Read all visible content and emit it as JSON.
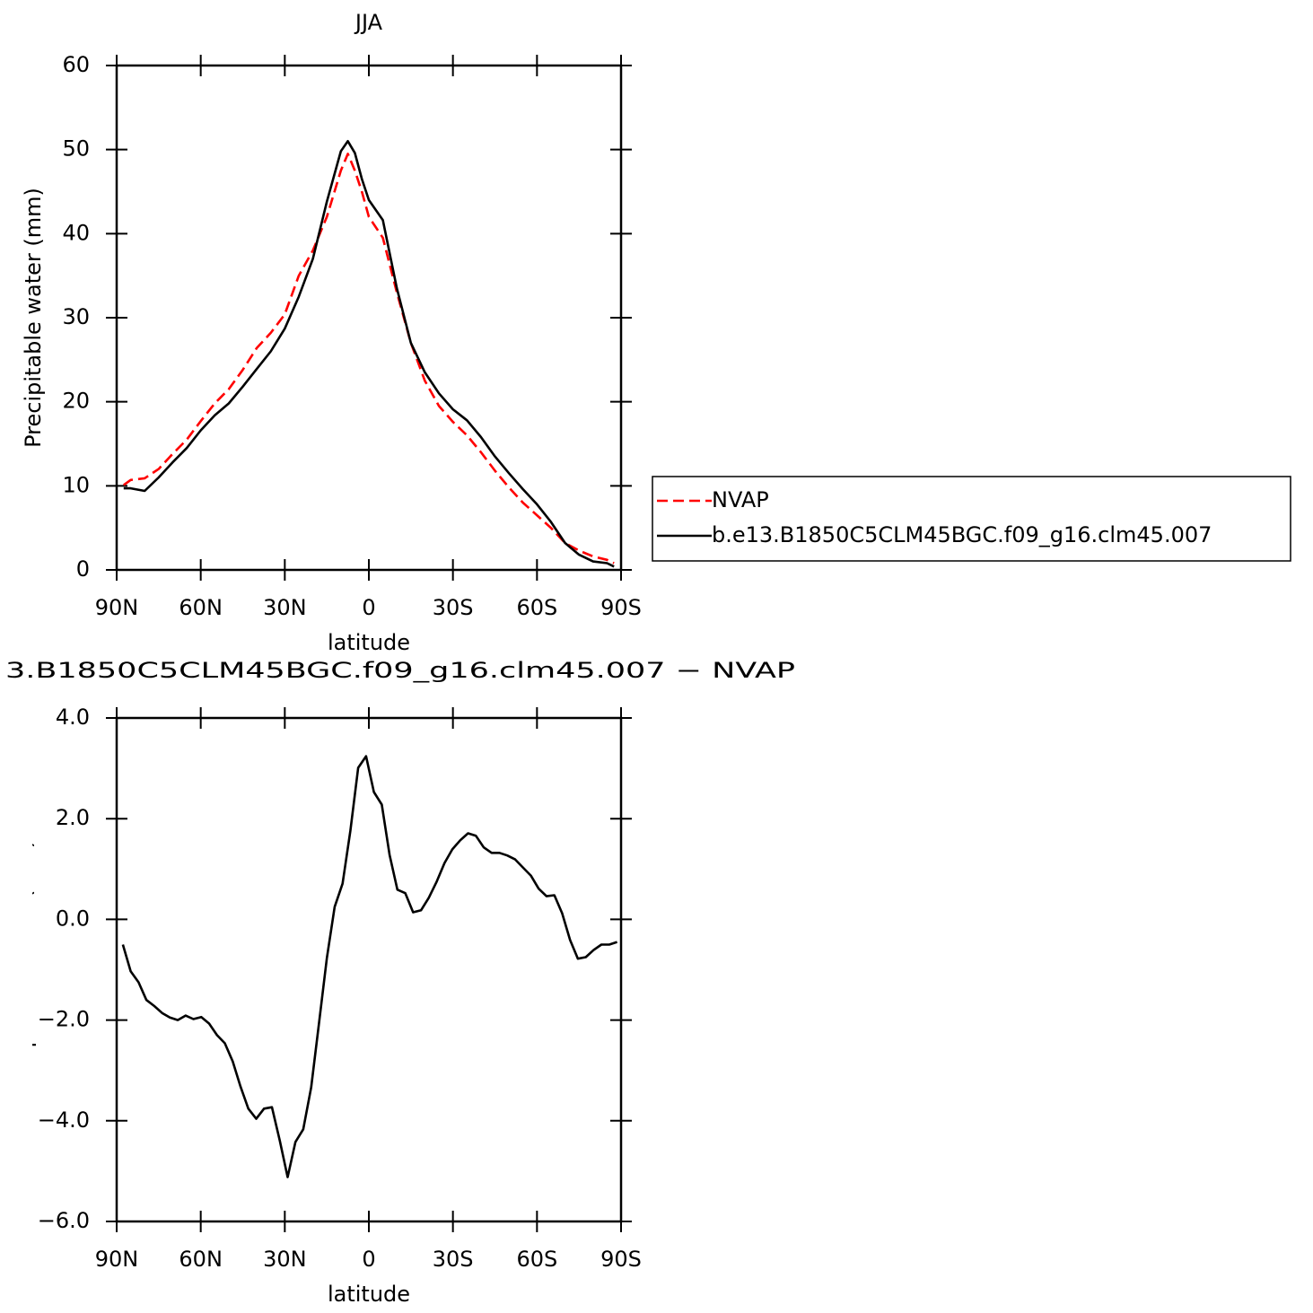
{
  "chart_data": [
    {
      "type": "line",
      "title": "JJA",
      "ylabel": "Precipitable water (mm)",
      "xlabel": "latitude",
      "xlim": [
        90,
        -90
      ],
      "xticks": [
        {
          "value": 90,
          "label": "90N"
        },
        {
          "value": 60,
          "label": "60N"
        },
        {
          "value": 30,
          "label": "30N"
        },
        0,
        {
          "value": -30,
          "label": "30S"
        },
        {
          "value": -60,
          "label": "60S"
        },
        {
          "value": -90,
          "label": "90S"
        }
      ],
      "ylim": [
        0,
        60
      ],
      "yticks": [
        0,
        10,
        20,
        30,
        40,
        50,
        60
      ],
      "legend": "right",
      "x": [
        87.5,
        85,
        80,
        75,
        70,
        65,
        60,
        55,
        50,
        45,
        40,
        35,
        30,
        25,
        20,
        15,
        10,
        7.5,
        5,
        2.5,
        0,
        -5,
        -10,
        -15,
        -20,
        -25,
        -30,
        -35,
        -40,
        -45,
        -50,
        -55,
        -60,
        -65,
        -70,
        -75,
        -80,
        -85,
        -87.5
      ],
      "series": [
        {
          "name": "NVAP",
          "color": "#ff0000",
          "style": "dashed",
          "values": [
            10.1,
            10.7,
            10.9,
            12.0,
            13.8,
            15.5,
            17.7,
            19.8,
            21.5,
            23.8,
            26.4,
            28.2,
            30.4,
            35.0,
            38.0,
            42.0,
            47.5,
            49.5,
            47.5,
            45.0,
            42.0,
            39.5,
            33.0,
            27.0,
            22.5,
            19.5,
            17.6,
            16.0,
            14.0,
            11.8,
            9.8,
            8.0,
            6.5,
            5.0,
            3.2,
            2.3,
            1.6,
            1.2,
            0.8
          ]
        },
        {
          "name": "b.e13.B1850C5CLM45BGC.f09_g16.clm45.007",
          "color": "#000000",
          "style": "solid",
          "values": [
            9.7,
            9.7,
            9.4,
            11.0,
            12.8,
            14.5,
            16.6,
            18.4,
            19.8,
            21.8,
            23.9,
            26.0,
            28.7,
            32.5,
            37.0,
            43.8,
            49.8,
            51.0,
            49.6,
            46.5,
            44.0,
            41.6,
            33.5,
            27.0,
            23.5,
            21.0,
            19.1,
            17.8,
            15.8,
            13.5,
            11.5,
            9.6,
            7.8,
            5.7,
            3.2,
            1.8,
            1.0,
            0.8,
            0.4
          ]
        }
      ]
    },
    {
      "type": "line",
      "title": "3.B1850C5CLM45BGC.f09_g16.clm45.007 − NVAP",
      "ylabel": "Precipitable water (mm)",
      "xlabel": "latitude",
      "xlim": [
        90,
        -90
      ],
      "xticks": [
        {
          "value": 90,
          "label": "90N"
        },
        {
          "value": 60,
          "label": "60N"
        },
        {
          "value": 30,
          "label": "30N"
        },
        0,
        {
          "value": -30,
          "label": "30S"
        },
        {
          "value": -60,
          "label": "60S"
        },
        {
          "value": -90,
          "label": "90S"
        }
      ],
      "ylim": [
        -6,
        4
      ],
      "yticks": [
        {
          "value": -6,
          "label": "−6.0"
        },
        {
          "value": -4,
          "label": "−4.0"
        },
        {
          "value": -2,
          "label": "−2.0"
        },
        {
          "value": 0,
          "label": "0.0"
        },
        {
          "value": 2,
          "label": "2.0"
        },
        {
          "value": 4,
          "label": "4.0"
        }
      ],
      "color": "#000000",
      "x": [
        87.8,
        85.0,
        82.2,
        79.4,
        76.6,
        73.8,
        71.0,
        68.2,
        65.4,
        62.6,
        59.8,
        57.0,
        54.2,
        51.4,
        48.6,
        45.8,
        43.0,
        40.2,
        37.4,
        34.6,
        31.8,
        29.0,
        26.2,
        23.4,
        20.6,
        17.8,
        15.0,
        12.2,
        9.4,
        6.6,
        3.8,
        1.0,
        -1.8,
        -4.6,
        -7.4,
        -10.2,
        -13.0,
        -15.8,
        -18.6,
        -21.4,
        -24.2,
        -27.0,
        -29.8,
        -32.6,
        -35.4,
        -38.2,
        -41.0,
        -43.8,
        -46.6,
        -49.4,
        -52.2,
        -55.0,
        -57.8,
        -60.6,
        -63.4,
        -66.2,
        -69.0,
        -71.8,
        -74.6,
        -77.4,
        -80.2,
        -83.0,
        -85.8,
        -88.6
      ],
      "values": [
        -0.5,
        -1.03,
        -1.25,
        -1.6,
        -1.72,
        -1.86,
        -1.95,
        -2.0,
        -1.91,
        -1.98,
        -1.94,
        -2.07,
        -2.3,
        -2.46,
        -2.82,
        -3.32,
        -3.76,
        -3.96,
        -3.76,
        -3.73,
        -4.39,
        -5.12,
        -4.42,
        -4.17,
        -3.34,
        -2.07,
        -0.77,
        0.25,
        0.71,
        1.76,
        3.01,
        3.24,
        2.53,
        2.28,
        1.28,
        0.59,
        0.52,
        0.14,
        0.18,
        0.43,
        0.75,
        1.12,
        1.39,
        1.57,
        1.71,
        1.66,
        1.43,
        1.32,
        1.32,
        1.27,
        1.19,
        1.03,
        0.87,
        0.61,
        0.46,
        0.48,
        0.12,
        -0.41,
        -0.78,
        -0.75,
        -0.61,
        -0.5,
        -0.5,
        -0.45
      ]
    }
  ]
}
